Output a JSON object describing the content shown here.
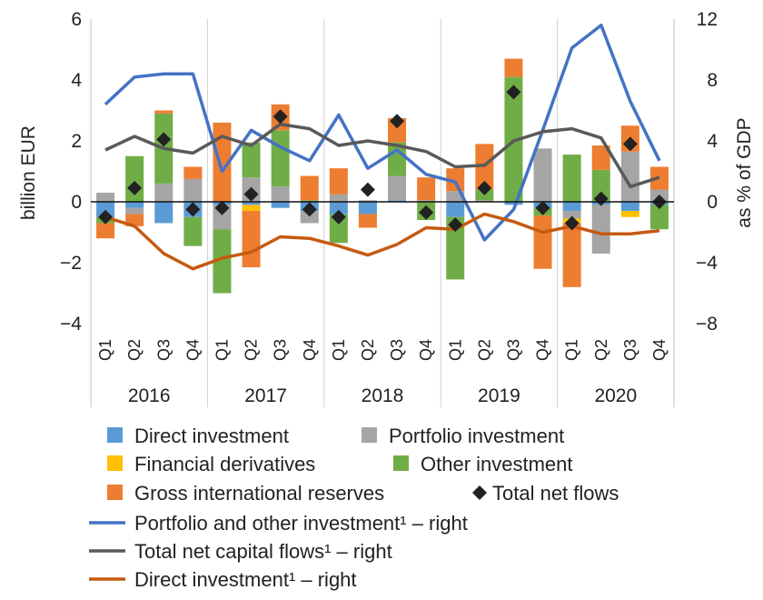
{
  "chart_data": {
    "type": "bar",
    "ylabel": "billion EUR",
    "y2label": "as % of GDP",
    "ylim": [
      -4,
      6
    ],
    "y2lim": [
      -8,
      12
    ],
    "yticks": [
      "6",
      "4",
      "2",
      "0",
      "−2",
      "−4"
    ],
    "y2ticks": [
      "12",
      "8",
      "4",
      "0",
      "−4",
      "−8"
    ],
    "years": [
      "2016",
      "2017",
      "2018",
      "2019",
      "2020"
    ],
    "categories": [
      "Q1",
      "Q2",
      "Q3",
      "Q4",
      "Q1",
      "Q2",
      "Q3",
      "Q4",
      "Q1",
      "Q2",
      "Q3",
      "Q4",
      "Q1",
      "Q2",
      "Q3",
      "Q4",
      "Q1",
      "Q2",
      "Q3",
      "Q4"
    ],
    "bar_series": [
      {
        "name": "Direct investment",
        "color": "#5b9bd5",
        "values": [
          -0.5,
          -0.2,
          -0.7,
          -0.5,
          -0.1,
          -0.1,
          -0.2,
          -0.3,
          -0.4,
          -0.4,
          0.05,
          0.0,
          -0.5,
          0.0,
          -0.1,
          -0.2,
          -0.3,
          -0.1,
          -0.3,
          -0.1
        ]
      },
      {
        "name": "Portfolio investment",
        "color": "#a5a5a5",
        "values": [
          0.3,
          -0.2,
          0.6,
          0.75,
          -0.8,
          0.8,
          0.5,
          -0.4,
          0.25,
          0.05,
          0.8,
          0.05,
          0.35,
          0.05,
          0.0,
          1.75,
          -0.25,
          -1.6,
          1.65,
          0.4
        ]
      },
      {
        "name": "Financial derivatives",
        "color": "#ffc000",
        "values": [
          0.0,
          0.0,
          0.0,
          0.0,
          0.0,
          -0.2,
          0.0,
          0.0,
          0.0,
          0.0,
          0.0,
          0.0,
          0.0,
          0.0,
          0.0,
          0.0,
          -0.15,
          0.0,
          -0.2,
          0.0
        ]
      },
      {
        "name": "Other investment",
        "color": "#70ad47",
        "values": [
          -0.2,
          1.5,
          2.3,
          -0.95,
          -2.1,
          1.15,
          1.85,
          0.05,
          -0.95,
          0.0,
          1.1,
          -0.6,
          -2.05,
          0.35,
          4.1,
          -0.25,
          1.55,
          1.05,
          0.0,
          -0.8
        ]
      },
      {
        "name": "Gross international reserves",
        "color": "#ed7d31",
        "values": [
          -0.5,
          -0.4,
          0.1,
          0.4,
          2.6,
          -1.85,
          0.85,
          0.8,
          0.85,
          -0.45,
          0.8,
          0.75,
          0.75,
          1.5,
          0.6,
          -1.75,
          -2.1,
          0.8,
          0.85,
          0.75
        ]
      }
    ],
    "total_net_flows": {
      "name": "Total net flows",
      "values": [
        -0.5,
        0.45,
        2.05,
        -0.25,
        -0.2,
        0.25,
        2.8,
        -0.25,
        -0.5,
        0.4,
        2.65,
        -0.35,
        -0.75,
        0.45,
        3.6,
        -0.2,
        -0.7,
        0.1,
        1.9,
        0.0
      ]
    },
    "line_series": [
      {
        "name": "Portfolio and other investment¹ – right",
        "color": "#4472c4",
        "values": [
          6.4,
          8.2,
          8.4,
          8.4,
          2.0,
          4.7,
          3.6,
          2.7,
          5.7,
          2.2,
          3.4,
          1.8,
          1.3,
          -2.5,
          -0.5,
          4.7,
          10.1,
          11.6,
          6.6,
          2.7
        ]
      },
      {
        "name": "Total net capital flows¹ – right",
        "color": "#595959",
        "values": [
          3.4,
          4.3,
          3.5,
          3.2,
          4.3,
          3.7,
          5.1,
          4.8,
          3.7,
          4.0,
          3.7,
          3.3,
          2.3,
          2.4,
          4.0,
          4.6,
          4.8,
          4.2,
          1.0,
          1.6
        ]
      },
      {
        "name": "Direct investment¹ – right",
        "color": "#c55a11",
        "values": [
          -1.0,
          -1.6,
          -3.4,
          -4.4,
          -3.7,
          -3.3,
          -2.3,
          -2.4,
          -2.9,
          -3.5,
          -2.8,
          -1.7,
          -1.8,
          -0.8,
          -1.3,
          -2.0,
          -1.6,
          -2.1,
          -2.1,
          -1.9
        ]
      }
    ],
    "legend": [
      {
        "label": "Direct investment",
        "kind": "box",
        "color": "#5b9bd5"
      },
      {
        "label": "Portfolio investment",
        "kind": "box",
        "color": "#a5a5a5"
      },
      {
        "label": "Financial derivatives",
        "kind": "box",
        "color": "#ffc000"
      },
      {
        "label": "Other investment",
        "kind": "box",
        "color": "#70ad47"
      },
      {
        "label": "Gross international reserves",
        "kind": "box",
        "color": "#ed7d31"
      },
      {
        "label": "Total net flows",
        "kind": "diamond",
        "color": "#222222"
      },
      {
        "label": "Portfolio and other investment¹ – right",
        "kind": "line",
        "color": "#4472c4"
      },
      {
        "label": "Total net capital flows¹ – right",
        "kind": "line",
        "color": "#595959"
      },
      {
        "label": "Direct investment¹ – right",
        "kind": "line",
        "color": "#c55a11"
      }
    ],
    "legend_placement": "bottom",
    "grid": "vertical separators between years"
  }
}
